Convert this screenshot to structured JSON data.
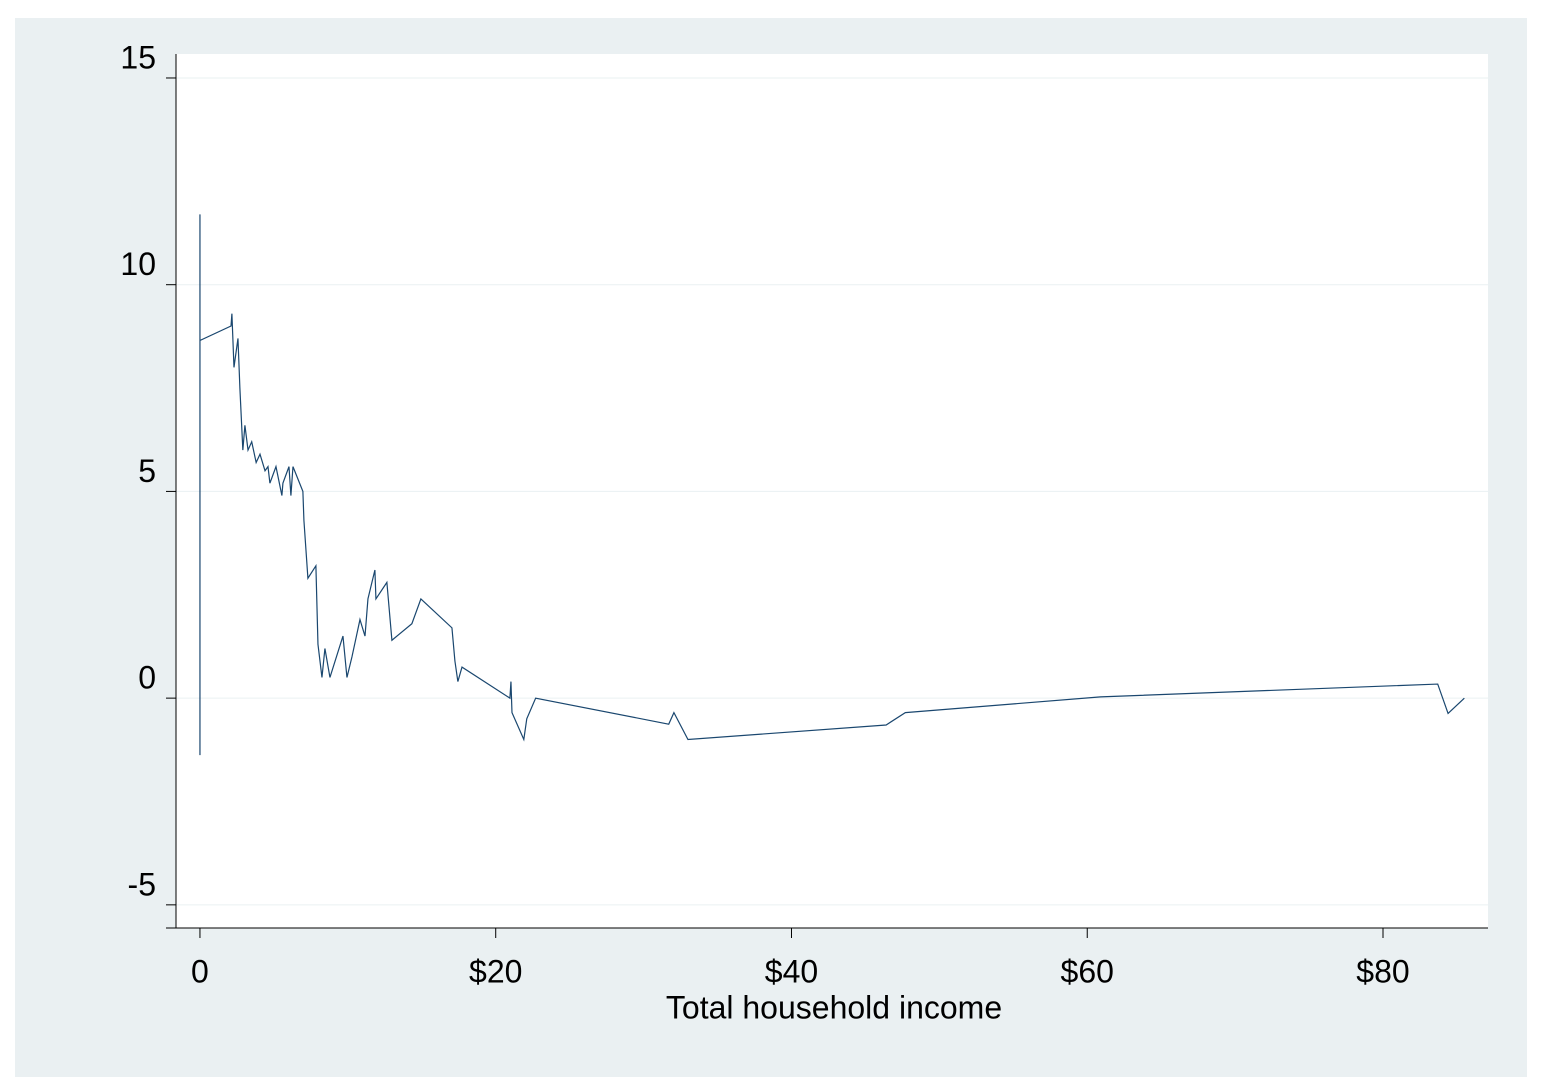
{
  "chart_data": {
    "type": "line",
    "x_label": "Total household income",
    "x": [
      0,
      0,
      0,
      2.1,
      2.16,
      2.3,
      2.57,
      2.7,
      2.9,
      3.04,
      3.25,
      3.5,
      3.8,
      4.06,
      4.4,
      4.6,
      4.73,
      5.14,
      5.54,
      5.61,
      6.02,
      6.15,
      6.29,
      6.96,
      7.03,
      7.3,
      7.84,
      7.98,
      8.25,
      8.45,
      8.79,
      9.67,
      9.94,
      10.28,
      10.82,
      11.16,
      11.36,
      11.83,
      11.9,
      12.64,
      12.98,
      14.33,
      14.94,
      17.04,
      17.24,
      17.44,
      17.72,
      20.96,
      21.03,
      21.1,
      21.9,
      22.1,
      22.7,
      31.7,
      32.05,
      33.0,
      46.4,
      47.7,
      60.9,
      83.7,
      84.4,
      85.5
    ],
    "series": [
      {
        "color": "#1a476f",
        "values": [
          11.7,
          -1.38,
          8.65,
          9.0,
          9.3,
          8.0,
          8.7,
          7.5,
          6.0,
          6.6,
          6.0,
          6.2,
          5.7,
          5.9,
          5.5,
          5.6,
          5.2,
          5.6,
          4.9,
          5.2,
          5.6,
          4.9,
          5.6,
          5.0,
          4.3,
          2.9,
          3.2,
          1.3,
          0.5,
          1.2,
          0.5,
          1.5,
          0.5,
          1.0,
          1.9,
          1.5,
          2.4,
          3.1,
          2.4,
          2.8,
          1.4,
          1.8,
          2.4,
          1.7,
          0.9,
          0.4,
          0.75,
          0.0,
          0.4,
          -0.35,
          -1.0,
          -0.5,
          0.0,
          -0.63,
          -0.35,
          -1.0,
          -0.65,
          -0.35,
          0.03,
          0.34,
          -0.37,
          0.0
        ]
      }
    ],
    "xlim": [
      -1.62,
      87.1
    ],
    "xticks": [
      0,
      {
        "value": 20,
        "label": "$20"
      },
      {
        "value": 40,
        "label": "$40"
      },
      {
        "value": 60,
        "label": "$60"
      },
      {
        "value": 80,
        "label": "$80"
      }
    ],
    "ylim": [
      -5.56,
      15.58
    ],
    "yticks": [
      -5,
      0,
      5,
      10,
      15
    ],
    "grid": true
  }
}
